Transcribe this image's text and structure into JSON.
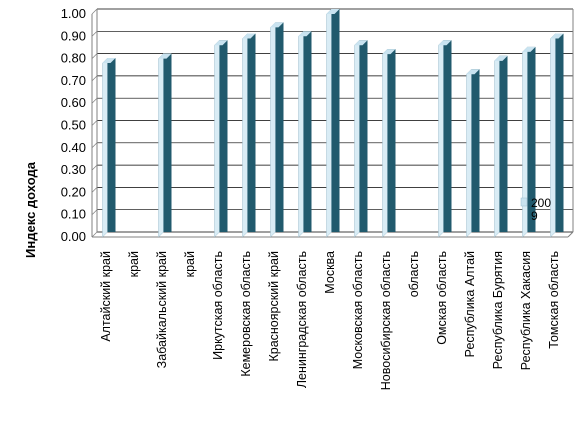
{
  "chart_data": {
    "type": "bar",
    "ylabel": "Индекс дохода",
    "ylim": [
      0,
      1.0
    ],
    "yticks": [
      "0.00",
      "0.10",
      "0.20",
      "0.30",
      "0.40",
      "0.50",
      "0.60",
      "0.70",
      "0.80",
      "0.90",
      "1.00"
    ],
    "grid": true,
    "legend_position": "right",
    "categories": [
      "Алтайский край",
      "край",
      "Забайкальский край",
      "край",
      "Иркутская область",
      "Кемеровская область",
      "Красноярский край",
      "Ленинградская область",
      "Москва",
      "Московская область",
      "Новосибирская область",
      "область",
      "Омская область",
      "Республика Алтай",
      "Республика Бурятия",
      "Республика Хакасия",
      "Томская область"
    ],
    "series": [
      {
        "name": "2009",
        "legend_lines": [
          "200",
          "9"
        ],
        "values": [
          0.78,
          null,
          0.8,
          null,
          0.86,
          0.89,
          0.94,
          0.9,
          1.0,
          0.86,
          0.82,
          null,
          0.86,
          0.73,
          0.79,
          0.83,
          0.89
        ]
      }
    ],
    "colors": {
      "bar_front": "#215a6d",
      "bar_top": "#c9e3f0",
      "bar_side": "#d9ecf5",
      "grid": "#000000",
      "axis": "#808080"
    }
  }
}
